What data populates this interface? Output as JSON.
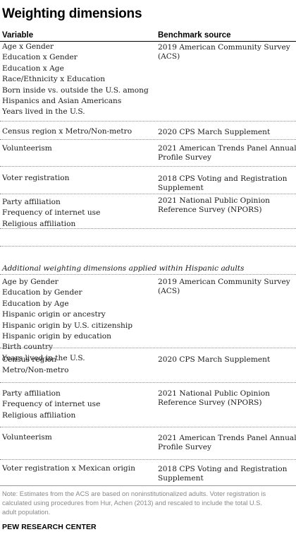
{
  "title": "Weighting dimensions",
  "headers": {
    "variable": "Variable",
    "source": "Benchmark source"
  },
  "rows": [
    {
      "variables": [
        "Age x Gender",
        "Education x Gender",
        "Education x Age",
        "Race/Ethnicity x Education",
        "Born inside vs. outside the U.S. among",
        "Hispanics and Asian Americans",
        "Years lived in the U.S."
      ],
      "source": [
        "2019 American Community Survey",
        "(ACS)"
      ]
    },
    {
      "variables": [
        "Census region x Metro/Non-metro"
      ],
      "source": [
        "2020 CPS March Supplement"
      ]
    },
    {
      "variables": [
        "Volunteerism"
      ],
      "source": [
        "2021 American Trends Panel Annual",
        "Profile Survey"
      ]
    },
    {
      "variables": [
        "Voter registration"
      ],
      "source": [
        "2018 CPS Voting and Registration",
        "Supplement"
      ]
    },
    {
      "variables": [
        "Party affiliation",
        "Frequency of internet use",
        "Religious affiliation"
      ],
      "source": [
        "2021 National Public Opinion",
        "Reference Survey (NPORS)"
      ]
    }
  ],
  "section_label": "Additional weighting dimensions applied within Hispanic adults",
  "hispanic_rows": [
    {
      "variables": [
        "Age by Gender",
        "Education by Gender",
        "Education by Age",
        "Hispanic origin or ancestry",
        "Hispanic origin by U.S. citizenship",
        "Hispanic origin by education",
        "Birth country",
        "Years lived in the U.S."
      ],
      "source": [
        "2019 American Community Survey",
        "(ACS)"
      ]
    },
    {
      "variables": [
        "Census region",
        "Metro/Non-metro"
      ],
      "source": [
        "2020 CPS March Supplement"
      ]
    },
    {
      "variables": [
        "Party affiliation",
        "Frequency of internet use",
        "Religious affiliation"
      ],
      "source": [
        "2021 National Public Opinion",
        "Reference Survey (NPORS)"
      ]
    },
    {
      "variables": [
        "Volunteerism"
      ],
      "source": [
        "2021 American Trends Panel Annual",
        "Profile Survey"
      ]
    },
    {
      "variables": [
        "Voter registration x Mexican origin"
      ],
      "source": [
        "2018 CPS Voting and Registration",
        "Supplement"
      ]
    }
  ],
  "note_lines": [
    "Note: Estimates from the ACS are based on noninstitutionalized adults. Voter registration is",
    "calculated using procedures from Hur, Achen (2013) and rescaled to include the total U.S.",
    "adult population."
  ],
  "organization": "PEW RESEARCH CENTER"
}
